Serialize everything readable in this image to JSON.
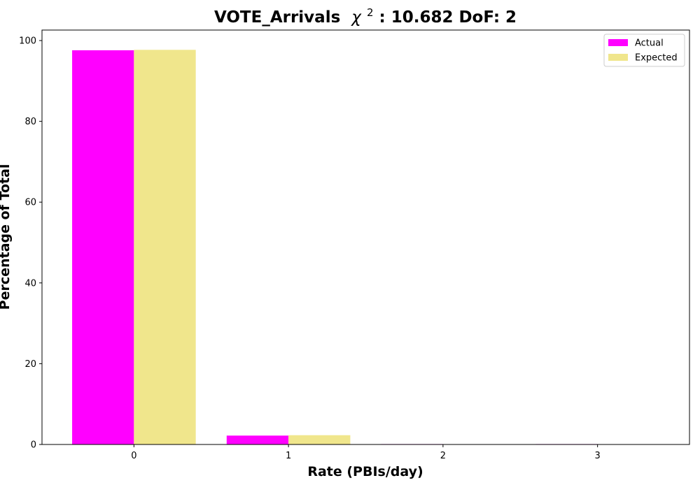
{
  "chart_data": {
    "type": "bar",
    "title_prefix": "VOTE_Arrivals",
    "title_symbol": "χ",
    "title_superscript": "2",
    "title_suffix": ": 10.682 DoF: 2",
    "xlabel": "Rate (PBIs/day)",
    "ylabel": "Percentage of Total",
    "categories": [
      "0",
      "1",
      "2",
      "3"
    ],
    "ylim": [
      0,
      102.6
    ],
    "yticks": [
      0,
      20,
      40,
      60,
      80,
      100
    ],
    "series": [
      {
        "name": "Actual",
        "color": "#ff00ff",
        "values": [
          97.6,
          2.2,
          0.1,
          0.1
        ]
      },
      {
        "name": "Expected",
        "color": "#f0e68c",
        "values": [
          97.7,
          2.3,
          0.0,
          0.0
        ]
      }
    ],
    "legend_position": "top-right",
    "grid": false
  }
}
